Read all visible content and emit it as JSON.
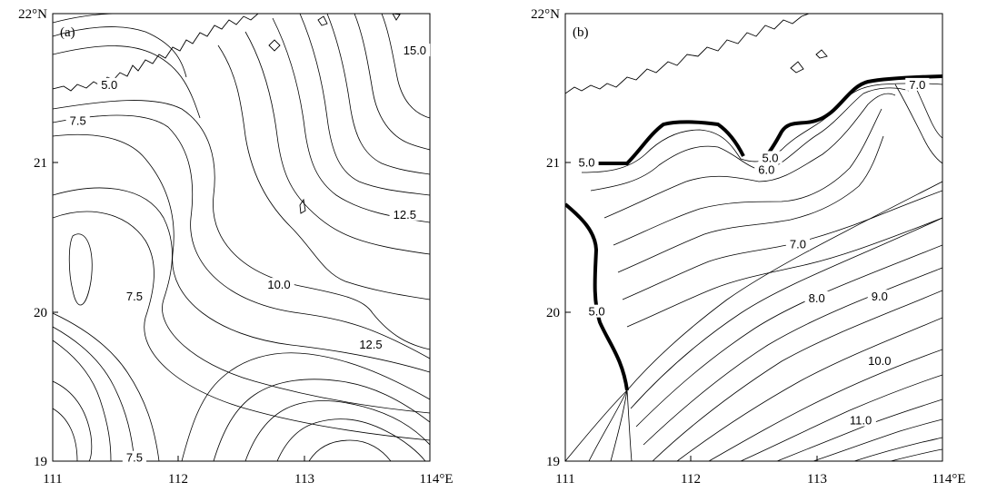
{
  "chart_data": [
    {
      "type": "contour",
      "panel_label": "(a)",
      "xlim": [
        111,
        114
      ],
      "ylim": [
        19,
        22
      ],
      "x_ticks": [
        "111",
        "112",
        "113",
        "114°E"
      ],
      "y_ticks": [
        "19",
        "20",
        "21",
        "22°N"
      ],
      "contour_labels": [
        {
          "text": "5.0",
          "x": 111.45,
          "y": 21.52
        },
        {
          "text": "7.5",
          "x": 111.2,
          "y": 21.28
        },
        {
          "text": "15.0",
          "x": 113.88,
          "y": 21.75
        },
        {
          "text": "12.5",
          "x": 113.8,
          "y": 20.65
        },
        {
          "text": "7.5",
          "x": 111.65,
          "y": 20.1
        },
        {
          "text": "10.0",
          "x": 112.8,
          "y": 20.18
        },
        {
          "text": "12.5",
          "x": 113.53,
          "y": 19.78
        },
        {
          "text": "7.5",
          "x": 111.65,
          "y": 19.02
        }
      ]
    },
    {
      "type": "contour",
      "panel_label": "(b)",
      "xlim": [
        111,
        114
      ],
      "ylim": [
        19,
        22
      ],
      "x_ticks": [
        "111",
        "112",
        "113",
        "114°E"
      ],
      "y_ticks": [
        "19",
        "20",
        "21",
        "22°N"
      ],
      "contour_labels": [
        {
          "text": "7.0",
          "x": 113.8,
          "y": 21.52
        },
        {
          "text": "5.0",
          "x": 111.17,
          "y": 21.0
        },
        {
          "text": "5.0",
          "x": 112.63,
          "y": 21.03
        },
        {
          "text": "6.0",
          "x": 112.6,
          "y": 20.95
        },
        {
          "text": "7.0",
          "x": 112.85,
          "y": 20.45
        },
        {
          "text": "8.0",
          "x": 113.0,
          "y": 20.09
        },
        {
          "text": "9.0",
          "x": 113.5,
          "y": 20.1
        },
        {
          "text": "5.0",
          "x": 111.25,
          "y": 20.0
        },
        {
          "text": "10.0",
          "x": 113.5,
          "y": 19.67
        },
        {
          "text": "11.0",
          "x": 113.35,
          "y": 19.27
        }
      ]
    }
  ]
}
